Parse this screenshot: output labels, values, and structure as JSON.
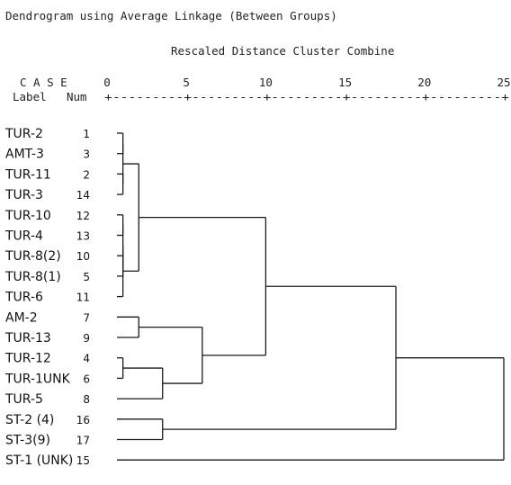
{
  "chart_data": {
    "type": "dendrogram",
    "title": "Dendrogram using Average Linkage (Between Groups)",
    "xlabel": "Rescaled Distance Cluster Combine",
    "case_header": "C A S E",
    "label_header": "Label",
    "num_header": "Num",
    "axis_rule": "+---------+---------+---------+---------+---------+",
    "xlim": [
      0,
      25
    ],
    "ticks": [
      0,
      5,
      10,
      15,
      20,
      25
    ],
    "leaves": [
      {
        "label": "TUR-2",
        "num": "1"
      },
      {
        "label": "AMT-3",
        "num": "3"
      },
      {
        "label": "TUR-11",
        "num": "2"
      },
      {
        "label": "TUR-3",
        "num": "14"
      },
      {
        "label": "TUR-10",
        "num": "12"
      },
      {
        "label": "TUR-4",
        "num": "13"
      },
      {
        "label": "TUR-8(2)",
        "num": "10"
      },
      {
        "label": "TUR-8(1)",
        "num": "5"
      },
      {
        "label": "TUR-6",
        "num": "11"
      },
      {
        "label": "AM-2",
        "num": "7"
      },
      {
        "label": "TUR-13",
        "num": "9"
      },
      {
        "label": "TUR-12",
        "num": "4"
      },
      {
        "label": "TUR-1UNK",
        "num": "6"
      },
      {
        "label": "TUR-5",
        "num": "8"
      },
      {
        "label": "ST-2 (4)",
        "num": "16"
      },
      {
        "label": "ST-3(9)",
        "num": "17"
      },
      {
        "label": "ST-1 (UNK)",
        "num": "15"
      }
    ],
    "merges": [
      {
        "a": 0,
        "b": 1,
        "height": 1.0
      },
      {
        "a": 2,
        "b": 3,
        "height": 1.0
      },
      {
        "a": 4,
        "b": 5,
        "height": 1.0
      },
      {
        "a": 6,
        "b": 7,
        "height": 1.0
      },
      {
        "a": 11,
        "b": 12,
        "height": 1.0
      },
      {
        "a": "m0",
        "b": "m1",
        "height": 1.0
      },
      {
        "a": "m2",
        "b": "m3",
        "height": 1.0
      },
      {
        "a": "m6",
        "b": 8,
        "height": 1.0
      },
      {
        "a": "m5",
        "b": "m7",
        "height": 2.0
      },
      {
        "a": 9,
        "b": 10,
        "height": 2.0
      },
      {
        "a": "m4",
        "b": 13,
        "height": 3.5
      },
      {
        "a": "m9",
        "b": "m10",
        "height": 6.0
      },
      {
        "a": 14,
        "b": 15,
        "height": 3.5
      },
      {
        "a": "m8",
        "b": "m11",
        "height": 10.0
      },
      {
        "a": "m13",
        "b": "m12",
        "height": 18.2
      },
      {
        "a": "m14",
        "b": 16,
        "height": 25.0
      }
    ]
  }
}
